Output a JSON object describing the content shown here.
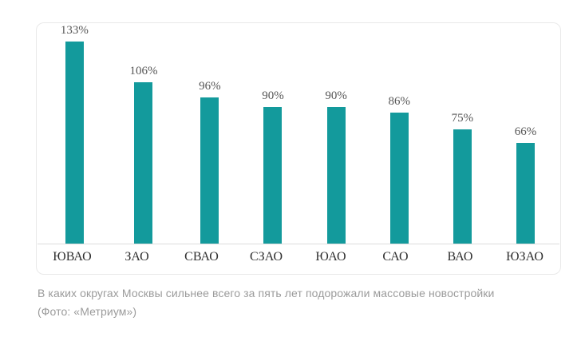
{
  "chart_data": {
    "type": "bar",
    "title": "",
    "xlabel": "",
    "ylabel": "",
    "categories": [
      "ЮВАО",
      "ЗАО",
      "СВАО",
      "СЗАО",
      "ЮАО",
      "САО",
      "ВАО",
      "ЮЗАО"
    ],
    "values": [
      133,
      106,
      96,
      90,
      90,
      86,
      75,
      66
    ],
    "value_labels": [
      "133%",
      "106%",
      "96%",
      "90%",
      "90%",
      "86%",
      "75%",
      "66%"
    ],
    "ylim": [
      0,
      140
    ],
    "grid": false,
    "legend_position": "none",
    "bar_color": "#139a9c",
    "value_label_color": "#565656",
    "category_label_color": "#2f2f2f"
  },
  "caption": {
    "line1": "В каких округах Москвы сильнее всего за пять лет подорожали массовые новостройки",
    "line2": "(Фото: «Метриум»)"
  }
}
